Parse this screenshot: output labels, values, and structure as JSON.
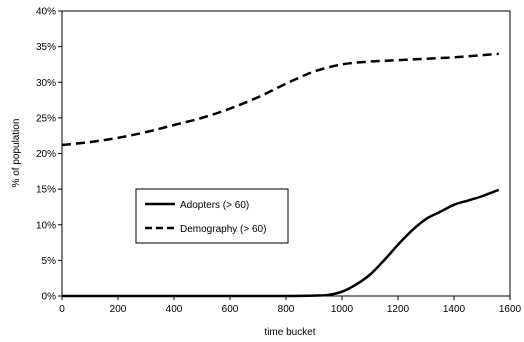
{
  "chart_data": {
    "type": "line",
    "title": "",
    "xlabel": "time bucket",
    "ylabel": "% of population",
    "xlim": [
      0,
      1600
    ],
    "ylim": [
      0,
      40
    ],
    "x_ticks": [
      0,
      200,
      400,
      600,
      800,
      1000,
      1200,
      1400,
      1600
    ],
    "x_tick_labels": [
      "0",
      "200",
      "400",
      "600",
      "800",
      "1000",
      "1200",
      "1400",
      "1600"
    ],
    "y_ticks": [
      0,
      5,
      10,
      15,
      20,
      25,
      30,
      35,
      40
    ],
    "y_tick_labels": [
      "0%",
      "5%",
      "10%",
      "15%",
      "20%",
      "25%",
      "30%",
      "35%",
      "40%"
    ],
    "grid": false,
    "legend": {
      "placement": "center-left",
      "entries": [
        "Adopters (> 60)",
        "Demography (> 60)"
      ]
    },
    "series": [
      {
        "name": "Adopters (> 60)",
        "style": "solid",
        "color": "#000000",
        "points": [
          [
            0,
            0.0
          ],
          [
            200,
            0.0
          ],
          [
            400,
            0.0
          ],
          [
            600,
            0.0
          ],
          [
            800,
            0.0
          ],
          [
            900,
            0.05
          ],
          [
            950,
            0.15
          ],
          [
            1000,
            0.6
          ],
          [
            1050,
            1.6
          ],
          [
            1100,
            3.0
          ],
          [
            1150,
            5.0
          ],
          [
            1200,
            7.2
          ],
          [
            1250,
            9.2
          ],
          [
            1300,
            10.8
          ],
          [
            1350,
            11.8
          ],
          [
            1400,
            12.8
          ],
          [
            1450,
            13.4
          ],
          [
            1500,
            14.0
          ],
          [
            1560,
            14.9
          ]
        ]
      },
      {
        "name": "Demography (> 60)",
        "style": "dashed",
        "color": "#000000",
        "points": [
          [
            0,
            21.2
          ],
          [
            100,
            21.6
          ],
          [
            200,
            22.2
          ],
          [
            300,
            23.0
          ],
          [
            400,
            24.0
          ],
          [
            500,
            25.0
          ],
          [
            600,
            26.3
          ],
          [
            700,
            27.9
          ],
          [
            800,
            29.8
          ],
          [
            900,
            31.5
          ],
          [
            1000,
            32.5
          ],
          [
            1100,
            32.9
          ],
          [
            1200,
            33.1
          ],
          [
            1300,
            33.3
          ],
          [
            1400,
            33.5
          ],
          [
            1500,
            33.8
          ],
          [
            1560,
            34.0
          ]
        ]
      }
    ]
  }
}
